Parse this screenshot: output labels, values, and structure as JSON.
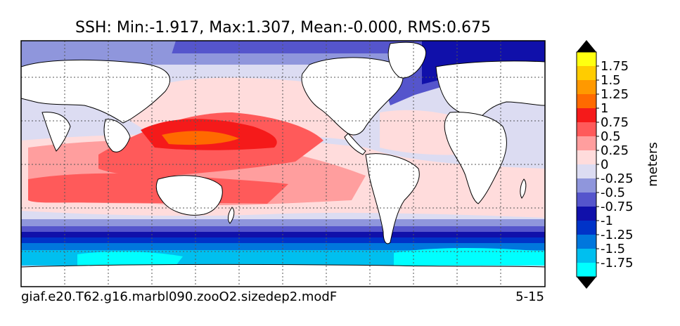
{
  "chart_data": {
    "type": "heatmap",
    "variant": "filled-contour world map",
    "title": "SSH: Min:-1.917, Max:1.307, Mean:-0.000, RMS:0.675",
    "variable": "SSH",
    "stats": {
      "min": -1.917,
      "max": 1.307,
      "mean": -0.0,
      "rms": 0.675
    },
    "caption_left": "giaf.e20.T62.g16.marbl090.zooO2.sizedep2.modF",
    "caption_right": "5-15",
    "grid": true,
    "colorbar": {
      "label": "meters",
      "extend": "both",
      "tick_labels": [
        "1.75",
        "1.5",
        "1.25",
        "1",
        "0.75",
        "0.5",
        "0.25",
        "0",
        "-0.25",
        "-0.5",
        "-0.75",
        "-1",
        "-1.25",
        "-1.5",
        "-1.75"
      ],
      "levels": [
        -2.0,
        -1.75,
        -1.5,
        -1.25,
        -1.0,
        -0.75,
        -0.5,
        -0.25,
        0,
        0.25,
        0.5,
        0.75,
        1.0,
        1.25,
        1.5,
        1.75,
        2.0
      ],
      "colors": [
        "#00ffff",
        "#00bfef",
        "#0077dd",
        "#0033c8",
        "#1010aa",
        "#5555cc",
        "#8f96dc",
        "#dcdcf2",
        "#ffdcdc",
        "#ff9e9e",
        "#ff5a5a",
        "#f51a1a",
        "#ff6a00",
        "#ff9900",
        "#ffcc00",
        "#ffff10"
      ],
      "under_color": "#000000",
      "over_color": "#000000"
    }
  }
}
